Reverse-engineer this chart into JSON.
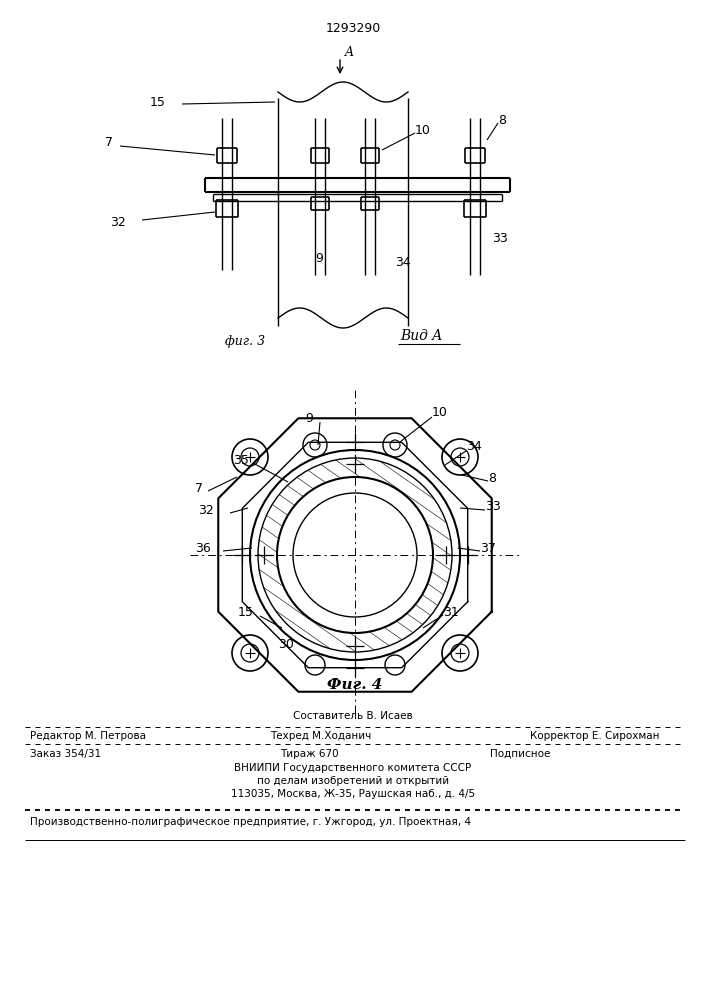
{
  "patent_number": "1293290",
  "fig3_label": "фиг. 3",
  "fig4_label": "Фиг. 4",
  "vid_A_label": "Вид A",
  "bg_color": "#ffffff",
  "line_color": "#000000",
  "footer": {
    "sestavitel": "Составитель В. Исаев",
    "redaktor": "Редактор М. Петрова",
    "tehred": "Техред М.Ходанич",
    "korrektor": "Корректор Е. Сирохман",
    "zakaz": "Заказ 354/31",
    "tirazh": "Тираж 670",
    "podpisnoe": "Подписное",
    "vniip1": "ВНИИПИ Государственного комитета СССР",
    "vniip2": "по делам изобретений и открытий",
    "vniip3": "113035, Москва, Ж-35, Раушская наб., д. 4/5",
    "proizv": "Производственно-полиграфическое предприятие, г. Ужгород, ул. Проектная, 4"
  }
}
